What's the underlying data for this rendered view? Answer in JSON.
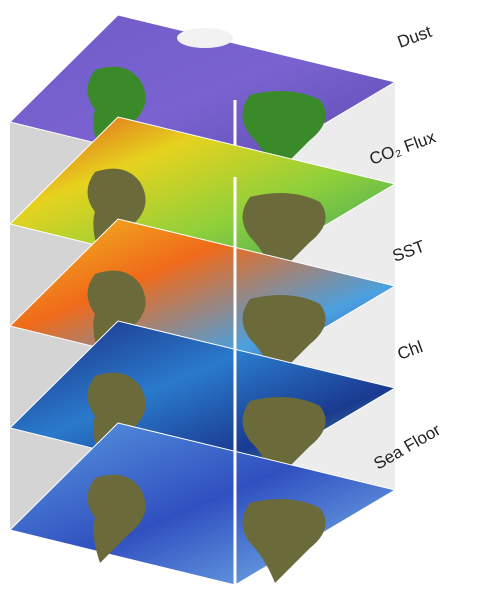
{
  "layers": [
    {
      "label": "Dust"
    },
    {
      "label": "CO₂ Flux"
    },
    {
      "label": "SST"
    },
    {
      "label": "Chl"
    },
    {
      "label": "Sea Floor"
    }
  ]
}
